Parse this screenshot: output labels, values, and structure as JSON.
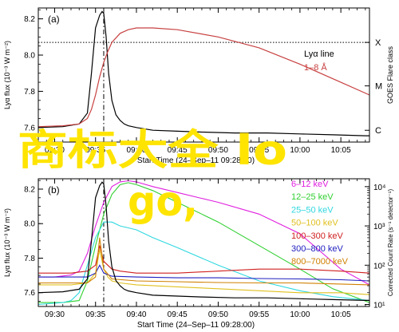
{
  "chart_data": [
    {
      "panel_label": "(a)",
      "type": "line",
      "ylabel_left": "Lyα flux (10⁻³ W m⁻²)",
      "ylabel_right": "GOES Flare class",
      "xlabel": "Start Time (24–Sep–11 09:28:00)",
      "x_ticks": [
        "09:30",
        "09:35",
        "09:40",
        "09:45",
        "09:50",
        "09:55",
        "10:00",
        "10:05"
      ],
      "y_ticks_left": [
        "7.6",
        "7.8",
        "8.0",
        "8.2"
      ],
      "ylim_left": [
        7.52,
        8.26
      ],
      "right_ticks": [
        "X",
        "M",
        "C"
      ],
      "legend": [
        "Lyα line",
        "1–8 Å"
      ],
      "colors": {
        "lya": "#000000",
        "goes": "#c84141"
      },
      "hline_y": 8.07,
      "vline_time": "09:36",
      "series": [
        {
          "name": "Lyα line",
          "x": [
            28,
            31,
            33,
            34,
            34.5,
            35,
            35.5,
            35.8,
            36,
            36.3,
            36.6,
            37,
            37.5,
            38,
            38.5,
            39,
            40,
            42,
            45,
            48,
            52,
            56,
            60,
            64,
            68,
            68.5
          ],
          "y": [
            7.6,
            7.605,
            7.62,
            7.68,
            7.9,
            8.15,
            8.22,
            8.24,
            8.23,
            8.1,
            7.9,
            7.75,
            7.67,
            7.64,
            7.62,
            7.61,
            7.6,
            7.585,
            7.58,
            7.575,
            7.57,
            7.57,
            7.565,
            7.56,
            7.555,
            7.555
          ]
        },
        {
          "name": "1–8 Å",
          "x": [
            28,
            31,
            33,
            34,
            34.5,
            35,
            35.5,
            36,
            36.5,
            37,
            38,
            39,
            40,
            42,
            45,
            50,
            55,
            60,
            65,
            68.5
          ],
          "y": [
            7.605,
            7.61,
            7.62,
            7.65,
            7.7,
            7.78,
            7.88,
            7.96,
            8.02,
            8.07,
            8.12,
            8.14,
            8.15,
            8.15,
            8.14,
            8.1,
            8.04,
            7.95,
            7.85,
            7.78
          ]
        }
      ]
    },
    {
      "panel_label": "(b)",
      "type": "line",
      "ylabel_left": "Lyα flux (10⁻³ W m⁻²)",
      "ylabel_right": "Corrected Count Rate (s⁻¹ detector⁻¹)",
      "xlabel": "Start Time (24–Sep–11 09:28:00)",
      "x_ticks": [
        "09:30",
        "09:35",
        "09:40",
        "09:45",
        "09:50",
        "09:55",
        "10:00",
        "10:05"
      ],
      "y_ticks_left": [
        "7.6",
        "7.8",
        "8.0",
        "8.2"
      ],
      "ylim_left": [
        7.52,
        8.26
      ],
      "right_ticks": [
        "10⁴",
        "10³",
        "10²",
        "10¹"
      ],
      "ylim_right_log10": [
        0.95,
        4.2
      ],
      "legend": [
        "6–12 keV",
        "12–25 keV",
        "25–50 keV",
        "50–100 keV",
        "100–300 keV",
        "300–800 keV",
        "800–7000 keV"
      ],
      "colors": {
        "6–12 keV": "#e020e0",
        "12–25 keV": "#30d030",
        "25–50 keV": "#30d8e0",
        "50–100 keV": "#e0c020",
        "100–300 keV": "#d02020",
        "300–800 keV": "#2020c0",
        "800–7000 keV": "#d08000",
        "lya": "#000000"
      },
      "vline_time": "09:36",
      "series": [
        {
          "name": "Lyα line",
          "x": [
            28,
            31,
            33,
            34,
            34.5,
            35,
            35.5,
            35.8,
            36,
            36.3,
            36.6,
            37,
            37.5,
            38,
            38.5,
            39,
            40,
            42,
            45,
            48,
            52,
            56,
            60,
            64,
            68,
            68.5
          ],
          "y": [
            7.6,
            7.605,
            7.62,
            7.68,
            7.9,
            8.15,
            8.22,
            8.24,
            8.23,
            8.1,
            7.9,
            7.75,
            7.67,
            7.64,
            7.62,
            7.61,
            7.6,
            7.585,
            7.58,
            7.575,
            7.57,
            7.57,
            7.565,
            7.56,
            7.555,
            7.555
          ]
        },
        {
          "name": "6–12 keV",
          "x": [
            28,
            30,
            32,
            33,
            34,
            35,
            36,
            37,
            38,
            39,
            40,
            42,
            45,
            48,
            50,
            55,
            60,
            65,
            68.5
          ],
          "y": [
            1.7,
            1.7,
            1.75,
            1.85,
            2.3,
            3.0,
            3.6,
            4.0,
            4.12,
            4.15,
            4.12,
            4.0,
            3.85,
            3.7,
            3.6,
            3.3,
            2.8,
            1.9,
            1.5
          ]
        },
        {
          "name": "12–25 keV",
          "x": [
            28,
            31,
            33,
            34,
            35,
            36,
            37,
            38,
            39,
            40,
            42,
            45,
            50,
            55,
            60,
            64,
            68.5
          ],
          "y": [
            1.05,
            1.05,
            1.1,
            1.6,
            2.5,
            3.3,
            3.8,
            4.05,
            4.1,
            4.05,
            3.9,
            3.6,
            3.1,
            2.5,
            1.9,
            1.4,
            1.05
          ]
        },
        {
          "name": "25–50 keV",
          "x": [
            28,
            31,
            32,
            33,
            34,
            35,
            36,
            37,
            38,
            39,
            40,
            42,
            45,
            50,
            55,
            60,
            64,
            68.5
          ],
          "y": [
            1.0,
            1.05,
            1.1,
            1.3,
            2.0,
            2.7,
            3.1,
            3.1,
            3.0,
            2.95,
            2.9,
            2.7,
            2.45,
            2.0,
            1.6,
            1.35,
            1.2,
            1.1
          ]
        },
        {
          "name": "50–100 keV",
          "x": [
            28,
            32,
            34,
            35,
            35.5,
            36,
            36.5,
            37,
            38,
            40,
            45,
            50,
            55,
            60,
            65,
            68.5
          ],
          "y": [
            1.5,
            1.5,
            1.55,
            1.8,
            2.4,
            1.9,
            1.7,
            1.6,
            1.55,
            1.5,
            1.45,
            1.4,
            1.35,
            1.3,
            1.3,
            1.25
          ]
        },
        {
          "name": "100–300 keV",
          "x": [
            28,
            32,
            34,
            35,
            35.5,
            36,
            37,
            38,
            40,
            45,
            50,
            55,
            60,
            65,
            68.5
          ],
          "y": [
            1.8,
            1.8,
            1.85,
            2.0,
            2.5,
            2.1,
            1.9,
            1.85,
            1.8,
            1.8,
            1.85,
            1.9,
            1.9,
            1.85,
            1.8
          ]
        },
        {
          "name": "300–800 keV",
          "x": [
            28,
            34,
            35,
            35.5,
            36,
            37,
            40,
            45,
            50,
            55,
            60,
            65,
            68.5
          ],
          "y": [
            1.7,
            1.7,
            1.8,
            2.0,
            1.8,
            1.72,
            1.7,
            1.68,
            1.68,
            1.66,
            1.65,
            1.63,
            1.6
          ]
        },
        {
          "name": "800–7000 keV",
          "x": [
            28,
            34,
            35,
            35.5,
            36,
            37,
            40,
            45,
            50,
            55,
            60,
            65,
            68.5
          ],
          "y": [
            1.55,
            1.55,
            1.7,
            2.7,
            1.9,
            1.65,
            1.6,
            1.58,
            1.56,
            1.55,
            1.55,
            1.52,
            1.5
          ]
        }
      ]
    }
  ],
  "overlay": {
    "line1": "商标大全 lo",
    "line2": "go,",
    "color": "#ffe400"
  }
}
